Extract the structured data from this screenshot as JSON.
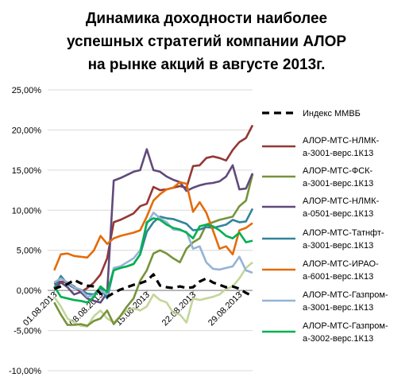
{
  "chart_data": {
    "type": "line",
    "title_lines": [
      "Динамика доходности наиболее",
      "успешных стратегий компании АЛОР",
      "на рынке акций в августе 2013г."
    ],
    "xlabel": "",
    "ylabel": "",
    "ylim": [
      -10,
      25
    ],
    "y_ticks": [
      "-10,00%",
      "-5,00%",
      "0,00%",
      "5,00%",
      "10,00%",
      "15,00%",
      "20,00%",
      "25,00%"
    ],
    "y_tick_values": [
      -10,
      -5,
      0,
      5,
      10,
      15,
      20,
      25
    ],
    "x_ticks": [
      "01.08.2013",
      "08.08.2013",
      "15.08.2013",
      "22.08.2013",
      "29.08.2013"
    ],
    "x_tick_values": [
      1,
      8,
      15,
      22,
      29
    ],
    "xlim": [
      0,
      31
    ],
    "grid": "horizontal",
    "legend_position": "right",
    "series": [
      {
        "name": "Индекс ММВБ",
        "color": "#000000",
        "dashed": true,
        "x": [
          1,
          2,
          3,
          4,
          5,
          6,
          7,
          8,
          9,
          10,
          11,
          12,
          13,
          14,
          15,
          16,
          17,
          18,
          19,
          20,
          21,
          22,
          23,
          24,
          25,
          26,
          27,
          28,
          29,
          30,
          31
        ],
        "values": [
          0.2,
          0.5,
          0.8,
          1.3,
          0.9,
          0.6,
          0.5,
          -0.4,
          -0.8,
          -0.3,
          0.1,
          0.4,
          0.7,
          0.9,
          1.2,
          2.0,
          0.6,
          0.4,
          0.3,
          0.5,
          0.3,
          0.4,
          1.1,
          1.5,
          1.0,
          0.7,
          0.4,
          0.5,
          0.2,
          -0.3,
          -0.7
        ]
      },
      {
        "name": "АЛОР-МТС-НЛМК-а-3001-верс.1К13",
        "color": "#953735",
        "dashed": false,
        "x": [
          1,
          2,
          3,
          4,
          5,
          6,
          7,
          8,
          9,
          10,
          11,
          12,
          13,
          14,
          15,
          16,
          17,
          18,
          19,
          20,
          21,
          22,
          23,
          24,
          25,
          26,
          27,
          28,
          29,
          30,
          31
        ],
        "values": [
          0.8,
          1.1,
          1.0,
          0.5,
          -0.2,
          0.3,
          1.0,
          2.0,
          4.0,
          8.5,
          8.8,
          9.2,
          9.6,
          10.5,
          10.8,
          12.9,
          12.5,
          12.6,
          12.8,
          13.0,
          12.8,
          15.5,
          15.6,
          16.5,
          16.7,
          16.5,
          16.2,
          17.5,
          18.5,
          19.0,
          20.6
        ]
      },
      {
        "name": "АЛОР-МТС-ФСК-а-3001-верс.1К13",
        "color": "#77933C",
        "dashed": false,
        "x": [
          1,
          2,
          3,
          4,
          5,
          6,
          7,
          8,
          9,
          10,
          11,
          12,
          13,
          14,
          15,
          16,
          17,
          18,
          19,
          20,
          21,
          22,
          23,
          24,
          25,
          26,
          27,
          28,
          29,
          30,
          31
        ],
        "values": [
          -1.5,
          -3.0,
          -4.3,
          -4.3,
          -4.2,
          -4.4,
          -3.8,
          -3.5,
          -2.5,
          -4.2,
          -3.2,
          -2.0,
          -1.0,
          1.2,
          2.5,
          4.6,
          5.0,
          4.6,
          4.0,
          3.5,
          5.2,
          6.0,
          6.5,
          8.2,
          8.5,
          8.8,
          9.0,
          9.2,
          10.5,
          11.2,
          14.5
        ]
      },
      {
        "name": "АЛОР-МТС-НЛМК-а-0501-верс.1К13",
        "color": "#604A7B",
        "dashed": false,
        "x": [
          1,
          2,
          3,
          4,
          5,
          6,
          7,
          8,
          9,
          10,
          11,
          12,
          13,
          14,
          15,
          16,
          17,
          18,
          19,
          20,
          21,
          22,
          23,
          24,
          25,
          26,
          27,
          28,
          29,
          30,
          31
        ],
        "values": [
          0.2,
          1.0,
          0.4,
          -0.5,
          -0.2,
          -1.0,
          -1.3,
          -1.5,
          -0.3,
          13.7,
          14.0,
          14.4,
          14.8,
          15.0,
          17.6,
          15.0,
          14.8,
          14.2,
          13.8,
          13.5,
          12.4,
          12.8,
          13.1,
          13.3,
          13.4,
          13.6,
          14.2,
          15.6,
          12.6,
          12.7,
          14.6
        ]
      },
      {
        "name": "АЛОР-МТС-Татнфт-а-3001-верс.1К13",
        "color": "#31849B",
        "dashed": false,
        "x": [
          1,
          2,
          3,
          4,
          5,
          6,
          7,
          8,
          9,
          10,
          11,
          12,
          13,
          14,
          15,
          16,
          17,
          18,
          19,
          20,
          21,
          22,
          23,
          24,
          25,
          26,
          27,
          28,
          29,
          30,
          31
        ],
        "values": [
          0.3,
          1.8,
          0.8,
          0.3,
          0.1,
          -0.4,
          -0.5,
          0.3,
          -1.0,
          2.6,
          2.8,
          3.0,
          3.3,
          4.5,
          7.3,
          8.5,
          9.2,
          9.0,
          8.9,
          8.6,
          8.3,
          7.5,
          7.6,
          7.9,
          7.8,
          8.0,
          8.2,
          8.8,
          8.5,
          8.6,
          10.2
        ]
      },
      {
        "name": "АЛОР-МТС-ИРАО-а-6001-верс.1К13",
        "color": "#E46C0A",
        "dashed": false,
        "x": [
          1,
          2,
          3,
          4,
          5,
          6,
          7,
          8,
          9,
          10,
          11,
          12,
          13,
          14,
          15,
          16,
          17,
          18,
          19,
          20,
          21,
          22,
          23,
          24,
          25,
          26,
          27,
          28,
          29,
          30,
          31
        ],
        "values": [
          2.5,
          4.5,
          4.6,
          4.3,
          4.2,
          4.1,
          5.0,
          6.8,
          5.8,
          6.5,
          6.8,
          7.0,
          7.2,
          7.5,
          9.2,
          11.2,
          12.0,
          12.6,
          12.8,
          13.5,
          13.3,
          9.8,
          11.0,
          9.7,
          7.5,
          5.2,
          5.5,
          4.5,
          7.5,
          7.8,
          8.4
        ]
      },
      {
        "name": "АЛОР-МТС-Газпром-а-3001-верс.1К13",
        "color": "#95B3D7",
        "dashed": false,
        "x": [
          1,
          2,
          3,
          4,
          5,
          6,
          7,
          8,
          9,
          10,
          11,
          12,
          13,
          14,
          15,
          16,
          17,
          18,
          19,
          20,
          21,
          22,
          23,
          24,
          25,
          26,
          27,
          28,
          29,
          30,
          31
        ],
        "values": [
          1.0,
          1.5,
          1.0,
          0.4,
          0.1,
          -0.8,
          -0.6,
          0.0,
          -0.5,
          2.8,
          3.0,
          3.5,
          4.0,
          5.0,
          8.2,
          9.7,
          9.0,
          8.5,
          7.6,
          7.5,
          7.3,
          5.2,
          5.5,
          3.5,
          2.7,
          2.6,
          2.8,
          3.0,
          4.2,
          2.5,
          2.2
        ]
      },
      {
        "name": "АЛОР-МТС-Газпром-а-3002-верс.1К13",
        "color": "#00B050",
        "dashed": false,
        "x": [
          1,
          2,
          3,
          4,
          5,
          6,
          7,
          8,
          9,
          10,
          11,
          12,
          13,
          14,
          15,
          16,
          17,
          18,
          19,
          20,
          21,
          22,
          23,
          24,
          25,
          26,
          27,
          28,
          29,
          30,
          31
        ],
        "values": [
          0.5,
          -0.8,
          -1.0,
          -1.2,
          -1.3,
          -1.5,
          -0.8,
          0.5,
          -0.2,
          2.5,
          2.8,
          3.0,
          3.3,
          4.5,
          8.5,
          9.0,
          8.8,
          8.2,
          7.8,
          7.6,
          7.2,
          6.5,
          8.0,
          8.2,
          8.0,
          7.5,
          6.8,
          6.5,
          7.2,
          6.0,
          6.2
        ]
      },
      {
        "name": "",
        "color": "#C3D69B",
        "dashed": false,
        "in_legend": false,
        "x": [
          1,
          2,
          3,
          4,
          5,
          6,
          7,
          8,
          9,
          10,
          11,
          12,
          13,
          14,
          15,
          16,
          17,
          18,
          19,
          20,
          21,
          22,
          23,
          24,
          25,
          26,
          27,
          28,
          29,
          30,
          31
        ],
        "values": [
          -0.8,
          -2.0,
          -3.5,
          -4.0,
          -4.4,
          -4.5,
          -3.2,
          -2.5,
          -3.5,
          -4.0,
          -3.2,
          -2.5,
          -2.2,
          -2.5,
          -2.0,
          -0.5,
          -1.2,
          -1.5,
          -2.8,
          -3.0,
          -4.0,
          -1.0,
          -1.2,
          -1.0,
          -0.8,
          -0.5,
          0.2,
          0.5,
          1.5,
          2.8,
          3.5
        ]
      }
    ]
  }
}
